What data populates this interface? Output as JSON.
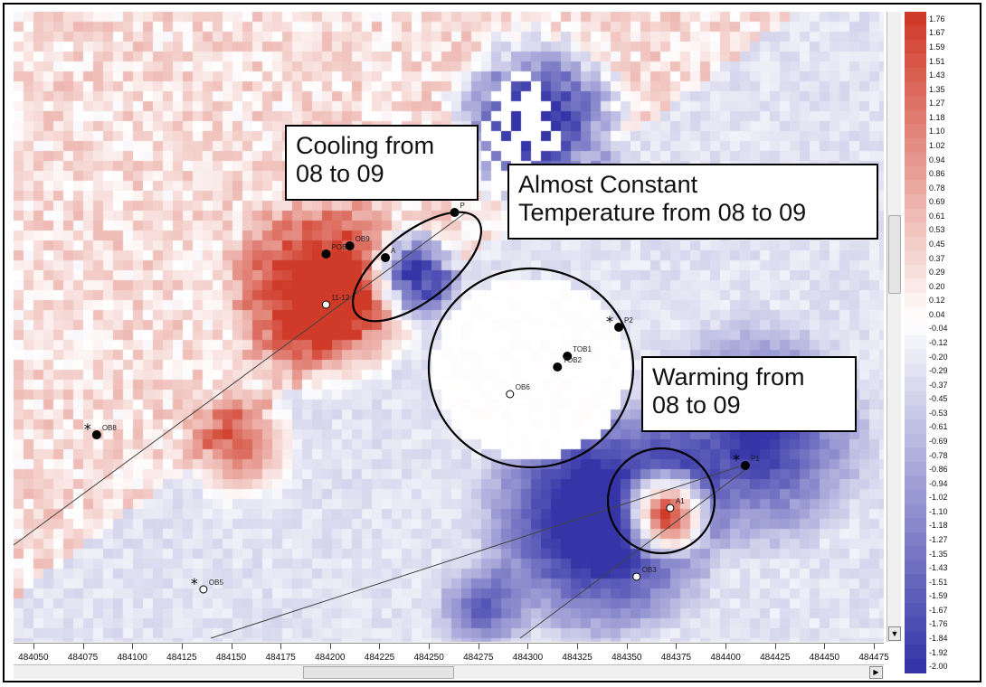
{
  "callouts": {
    "cooling": [
      "Cooling from",
      "08 to 09"
    ],
    "constant": [
      "Almost Constant",
      "Temperature from 08 to 09"
    ],
    "warming": [
      "Warming from",
      "08 to 09"
    ]
  },
  "legend": {
    "labels": [
      "1.76",
      "1.67",
      "1.59",
      "1.51",
      "1.43",
      "1.35",
      "1.27",
      "1.18",
      "1.10",
      "1.02",
      "0.94",
      "0.86",
      "0.78",
      "0.69",
      "0.61",
      "0.53",
      "0.45",
      "0.37",
      "0.29",
      "0.20",
      "0.12",
      "0.04",
      "-0.04",
      "-0.12",
      "-0.20",
      "-0.29",
      "-0.37",
      "-0.45",
      "-0.53",
      "-0.61",
      "-0.69",
      "-0.78",
      "-0.86",
      "-0.94",
      "-1.02",
      "-1.10",
      "-1.18",
      "-1.27",
      "-1.35",
      "-1.43",
      "-1.51",
      "-1.59",
      "-1.67",
      "-1.76",
      "-1.84",
      "-1.92",
      "-2.00"
    ],
    "max": 1.76,
    "min": -2.0,
    "colors": {
      "warm": "#d03a28",
      "neutral": "#ffffff",
      "cool": "#3535a8"
    }
  },
  "x_axis": {
    "ticks": [
      "484050",
      "484075",
      "484100",
      "484125",
      "484150",
      "484175",
      "484200",
      "484225",
      "484250",
      "484275",
      "484300",
      "484325",
      "484350",
      "484375",
      "484400",
      "484425",
      "484450",
      "484475"
    ],
    "min": 484040,
    "max": 484480
  },
  "wells": [
    {
      "label": "OB8",
      "x": 484082,
      "filled": true,
      "star": true
    },
    {
      "label": "OB5",
      "x": 484136,
      "filled": false,
      "star": true
    },
    {
      "label": "POB",
      "x": 484198,
      "filled": true,
      "star": false
    },
    {
      "label": "OB9",
      "x": 484210,
      "filled": true,
      "star": false
    },
    {
      "label": "A",
      "x": 484228,
      "filled": true,
      "star": false
    },
    {
      "label": "P",
      "x": 484263,
      "filled": true,
      "star": false
    },
    {
      "label": "11-12",
      "x": 484198,
      "filled": false,
      "star": false
    },
    {
      "label": "OB6",
      "x": 484291,
      "filled": false,
      "star": false
    },
    {
      "label": "TOB1",
      "x": 484320,
      "filled": true,
      "star": false
    },
    {
      "label": "TOB2",
      "x": 484315,
      "filled": true,
      "star": false
    },
    {
      "label": "P2",
      "x": 484346,
      "filled": true,
      "star": true
    },
    {
      "label": "P1",
      "x": 484410,
      "filled": true,
      "star": true
    },
    {
      "label": "A1",
      "x": 484372,
      "filled": false,
      "star": false
    },
    {
      "label": "OB3",
      "x": 484355,
      "filled": false,
      "star": false
    }
  ]
}
